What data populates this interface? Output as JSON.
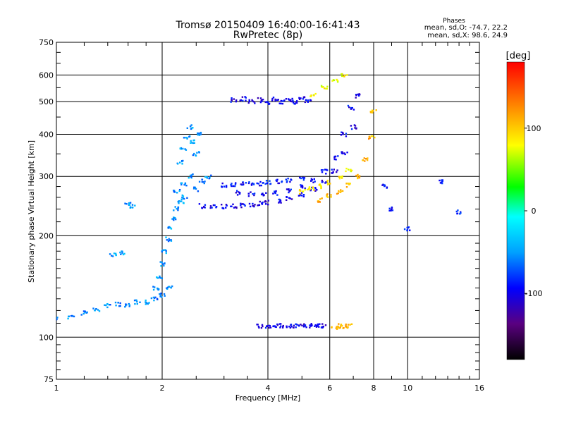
{
  "header": {
    "title": "Tromsø 20150409 16:40:00-16:41:43",
    "subtitle": "RwPretec (8p)"
  },
  "stats": {
    "heading": "Phases",
    "line1": "mean, sd,O:  -74.7, 22.2",
    "line2": "mean, sd,X:   98.6, 24.9"
  },
  "colorbar": {
    "unit_label": "[deg]",
    "ticks": [
      {
        "label": "100",
        "value": 100
      },
      {
        "label": "0",
        "value": 0
      },
      {
        "label": "-100",
        "value": -100
      }
    ],
    "range": [
      -180,
      180
    ]
  },
  "chart_data": {
    "type": "scatter",
    "xlabel": "Frequency [MHz]",
    "ylabel": "Stationary phase Virtual Height [km]",
    "xscale": "log",
    "yscale": "log",
    "xlim": [
      1,
      16
    ],
    "ylim": [
      75,
      750
    ],
    "xticks": [
      {
        "label": "1",
        "value": 1
      },
      {
        "label": "2",
        "value": 2
      },
      {
        "label": "4",
        "value": 4
      },
      {
        "label": "6",
        "value": 6
      },
      {
        "label": "8",
        "value": 8
      },
      {
        "label": "10",
        "value": 10
      },
      {
        "label": "16",
        "value": 16
      }
    ],
    "yticks": [
      {
        "label": "75",
        "value": 75
      },
      {
        "label": "100",
        "value": 100
      },
      {
        "label": "200",
        "value": 200
      },
      {
        "label": "300",
        "value": 300
      },
      {
        "label": "400",
        "value": 400
      },
      {
        "label": "500",
        "value": 500
      },
      {
        "label": "600",
        "value": 600
      },
      {
        "label": "750",
        "value": 750
      }
    ],
    "grid": true,
    "point_groups": [
      {
        "x": [
          1.0,
          1.1,
          1.2,
          1.3,
          1.4,
          1.5,
          1.6,
          1.7,
          1.8,
          1.9,
          2.0,
          2.1
        ],
        "y": [
          113,
          115,
          118,
          121,
          124,
          125,
          124,
          127,
          127,
          130,
          133,
          140
        ],
        "phase": -55
      },
      {
        "x": [
          1.92,
          1.96,
          2.0,
          2.04,
          2.08,
          2.12,
          2.16,
          2.2,
          2.26,
          2.32
        ],
        "y": [
          140,
          150,
          165,
          180,
          195,
          210,
          225,
          240,
          252,
          260
        ],
        "phase": -50
      },
      {
        "x": [
          2.2,
          2.3,
          2.4,
          2.5,
          2.6,
          2.7
        ],
        "y": [
          270,
          285,
          300,
          275,
          290,
          300
        ],
        "phase": -55
      },
      {
        "x": [
          2.25,
          2.3,
          2.35,
          2.4,
          2.45,
          2.5,
          2.55
        ],
        "y": [
          330,
          360,
          390,
          420,
          380,
          350,
          400
        ],
        "phase": -50
      },
      {
        "x": [
          1.45,
          1.55,
          1.6,
          1.65
        ],
        "y": [
          175,
          178,
          250,
          245
        ],
        "phase": -50
      },
      {
        "x": [
          2.6,
          2.8,
          3.0,
          3.2,
          3.4,
          3.6,
          3.8,
          4.0,
          4.3,
          4.6,
          5.0,
          5.4,
          5.8,
          6.2,
          6.6,
          7.0,
          7.2
        ],
        "y": [
          245,
          243,
          244,
          245,
          246,
          247,
          249,
          251,
          254,
          258,
          265,
          275,
          290,
          310,
          350,
          420,
          520
        ],
        "phase": -100
      },
      {
        "x": [
          3.3,
          3.6,
          3.9,
          4.2,
          4.6,
          5.0,
          5.4,
          5.8,
          6.2,
          6.6,
          6.9
        ],
        "y": [
          268,
          266,
          265,
          268,
          272,
          280,
          292,
          310,
          340,
          400,
          480
        ],
        "phase": -95
      },
      {
        "x": [
          3.0,
          3.2,
          3.4,
          3.6,
          3.8,
          4.0,
          4.3,
          4.6,
          5.0
        ],
        "y": [
          282,
          283,
          285,
          285,
          285,
          288,
          290,
          292,
          294
        ],
        "phase": -90
      },
      {
        "x": [
          5.6,
          6.0,
          6.4,
          6.8,
          7.2,
          7.6,
          7.9,
          8.0
        ],
        "y": [
          255,
          262,
          270,
          282,
          300,
          335,
          390,
          470
        ],
        "phase": 108
      },
      {
        "x": [
          5.0,
          5.3,
          5.6,
          6.0,
          6.4,
          6.8
        ],
        "y": [
          270,
          275,
          280,
          288,
          298,
          315
        ],
        "phase": 85
      },
      {
        "x": [
          3.2,
          3.4,
          3.6,
          3.8,
          4.0,
          4.2,
          4.4,
          4.6,
          4.8,
          5.0,
          5.2
        ],
        "y": [
          505,
          510,
          500,
          505,
          498,
          510,
          500,
          505,
          498,
          510,
          505
        ],
        "phase": -100
      },
      {
        "x": [
          5.4,
          5.8,
          6.2,
          6.6
        ],
        "y": [
          525,
          550,
          580,
          600
        ],
        "phase": 80
      },
      {
        "x": [
          3.8,
          4.0,
          4.2,
          4.4,
          4.6,
          4.8,
          5.0,
          5.2,
          5.4,
          5.6,
          5.8
        ],
        "y": [
          108,
          108,
          108,
          108,
          108,
          108,
          108,
          108,
          108,
          108,
          108
        ],
        "phase": -100
      },
      {
        "x": [
          6.2,
          6.4,
          6.6,
          6.8
        ],
        "y": [
          107,
          108,
          107,
          108
        ],
        "phase": 110
      },
      {
        "x": [
          8.6,
          9.0,
          10.0,
          12.5,
          14.0
        ],
        "y": [
          280,
          240,
          210,
          290,
          235
        ],
        "phase": -90
      }
    ]
  }
}
